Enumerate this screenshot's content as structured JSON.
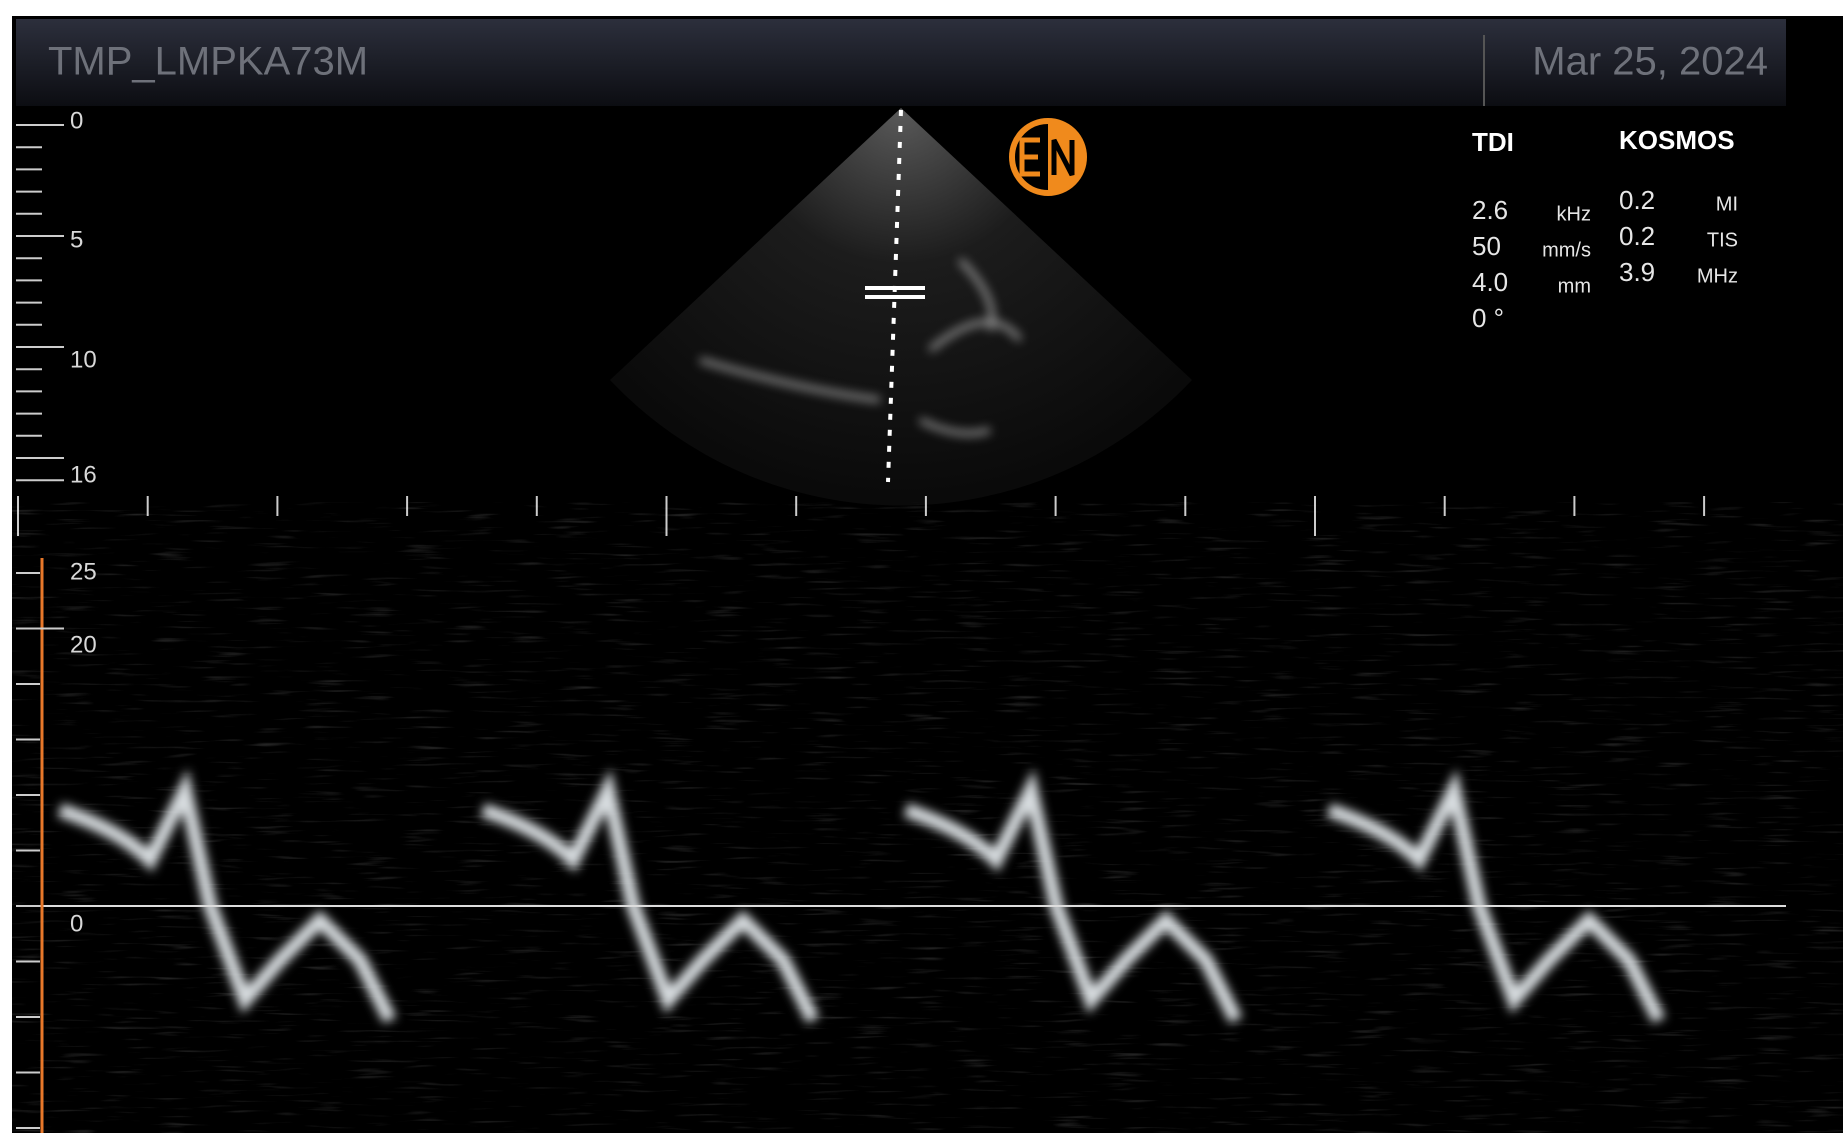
{
  "header": {
    "patient_id": "TMP_LMPKA73M",
    "date": "Mar 25, 2024"
  },
  "depth_scale": {
    "labels": [
      "0",
      "5",
      "10",
      "16"
    ]
  },
  "parameters": {
    "mode": "TDI",
    "device": "KOSMOS",
    "left": [
      {
        "value": "2.6",
        "unit": "kHz"
      },
      {
        "value": "50",
        "unit": "mm/s"
      },
      {
        "value": "4.0",
        "unit": "mm"
      },
      {
        "value": "0 °"
      }
    ],
    "right": [
      {
        "value": "0.2",
        "unit": "MI"
      },
      {
        "value": "0.2",
        "unit": "TIS"
      },
      {
        "value": "3.9",
        "unit": "MHz"
      }
    ]
  },
  "velocity_scale": {
    "labels": [
      "25",
      "20",
      "0"
    ]
  }
}
